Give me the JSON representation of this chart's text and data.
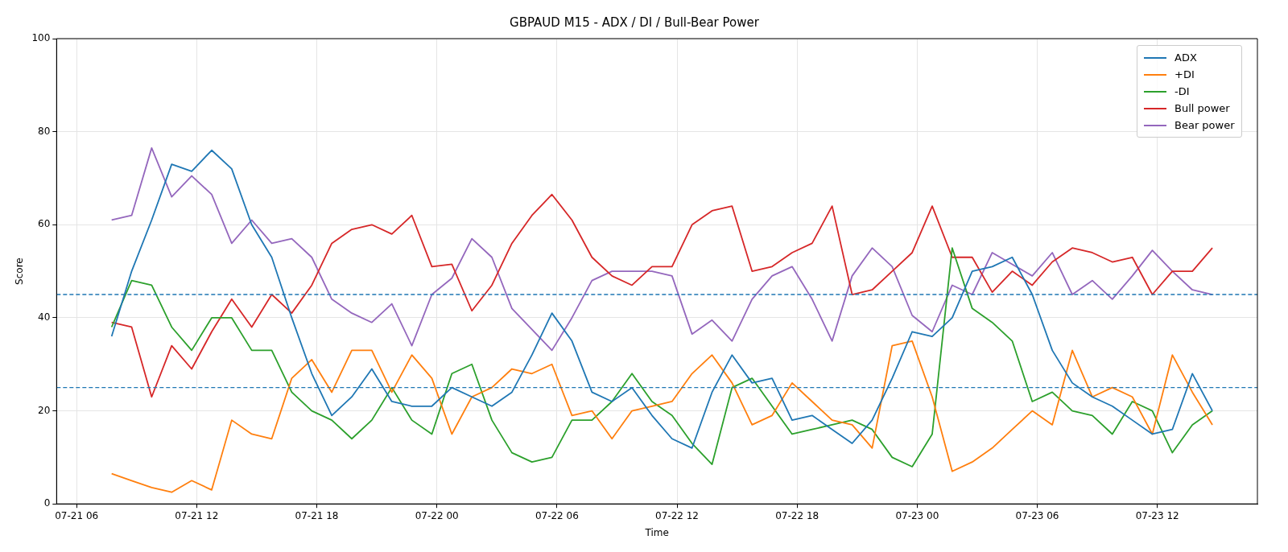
{
  "chart_data": {
    "type": "line",
    "title": "GBPAUD M15 - ADX / DI / Bull-Bear Power",
    "xlabel": "Time",
    "ylabel": "Score",
    "x": [
      "--07-21T07:45",
      "--07-21T08:45",
      "--07-21T09:45",
      "--07-21T10:45",
      "--07-21T11:45",
      "--07-21T12:45",
      "--07-21T13:45",
      "--07-21T14:45",
      "--07-21T15:45",
      "--07-21T16:45",
      "--07-21T17:45",
      "--07-21T18:45",
      "--07-21T19:45",
      "--07-21T20:45",
      "--07-21T21:45",
      "--07-21T22:45",
      "--07-21T23:45",
      "--07-22T00:45",
      "--07-22T01:45",
      "--07-22T02:45",
      "--07-22T03:45",
      "--07-22T04:45",
      "--07-22T05:45",
      "--07-22T06:45",
      "--07-22T07:45",
      "--07-22T08:45",
      "--07-22T09:45",
      "--07-22T10:45",
      "--07-22T11:45",
      "--07-22T12:45",
      "--07-22T13:45",
      "--07-22T14:45",
      "--07-22T15:45",
      "--07-22T16:45",
      "--07-22T17:45",
      "--07-22T18:45",
      "--07-22T19:45",
      "--07-22T20:45",
      "--07-22T21:45",
      "--07-22T22:45",
      "--07-22T23:45",
      "--07-23T00:45",
      "--07-23T01:45",
      "--07-23T02:45",
      "--07-23T03:45",
      "--07-23T04:45",
      "--07-23T05:45",
      "--07-23T06:45",
      "--07-23T07:45",
      "--07-23T08:45",
      "--07-23T09:45",
      "--07-23T10:45",
      "--07-23T11:45",
      "--07-23T12:45",
      "--07-23T13:45",
      "--07-23T14:45"
    ],
    "series": [
      {
        "name": "ADX",
        "color": "#1f77b4",
        "values": [
          36,
          50,
          61,
          73,
          71.5,
          76,
          72,
          60,
          53,
          40,
          28,
          19,
          23,
          29,
          22,
          21,
          21,
          25,
          23,
          21,
          24,
          32,
          41,
          35,
          24,
          22,
          25,
          19,
          14,
          12,
          24,
          32,
          26,
          27,
          18,
          19,
          16,
          13,
          18,
          27,
          37,
          36,
          40,
          50,
          51,
          53,
          45,
          33,
          26,
          23,
          21,
          18,
          15,
          16,
          28,
          20
        ]
      },
      {
        "name": "+DI",
        "color": "#ff7f0e",
        "values": [
          6.5,
          5,
          3.5,
          2.5,
          5,
          3,
          18,
          15,
          14,
          27,
          31,
          24,
          33,
          33,
          24,
          32,
          27,
          15,
          23,
          25,
          29,
          28,
          30,
          19,
          20,
          14,
          20,
          21,
          22,
          28,
          32,
          26,
          17,
          19,
          26,
          22,
          18,
          17,
          12,
          34,
          35,
          23,
          7,
          9,
          12,
          16,
          20,
          17,
          33,
          23,
          25,
          23,
          15,
          32,
          24,
          17
        ]
      },
      {
        "name": "-DI",
        "color": "#2ca02c",
        "values": [
          38,
          48,
          47,
          38,
          33,
          40,
          40,
          33,
          33,
          24,
          20,
          18,
          14,
          18,
          25,
          18,
          15,
          28,
          30,
          18,
          11,
          9,
          10,
          18,
          18,
          22,
          28,
          22,
          19,
          13,
          8.5,
          25,
          27,
          21,
          15,
          16,
          17,
          18,
          16,
          10,
          8,
          15,
          55,
          42,
          39,
          35,
          22,
          24,
          20,
          19,
          15,
          22,
          20,
          11,
          17,
          20
        ]
      },
      {
        "name": "Bull power",
        "color": "#d62728",
        "values": [
          39,
          38,
          23,
          34,
          29,
          37,
          44,
          38,
          45,
          41,
          47,
          56,
          59,
          60,
          58,
          62,
          51,
          51.5,
          41.5,
          47,
          56,
          62,
          66.5,
          61,
          53,
          49,
          47,
          51,
          51,
          60,
          63,
          64,
          50,
          51,
          54,
          56,
          64,
          45,
          46,
          50,
          54,
          64,
          53,
          53,
          45.5,
          50,
          47,
          52,
          55,
          54,
          52,
          53,
          45,
          50,
          50,
          55
        ]
      },
      {
        "name": "Bear power",
        "color": "#9467bd",
        "values": [
          61,
          62,
          76.5,
          66,
          70.5,
          66.5,
          56,
          61,
          56,
          57,
          53,
          44,
          41,
          39,
          43,
          34,
          45,
          48.5,
          57,
          53,
          42,
          37.5,
          33,
          40,
          48,
          50,
          50,
          50,
          49,
          36.5,
          39.5,
          35,
          44,
          49,
          51,
          44,
          35,
          49,
          55,
          51,
          40.5,
          37,
          47,
          45,
          54,
          51.5,
          49,
          54,
          45,
          48,
          44,
          49,
          54.5,
          50,
          46,
          45
        ]
      }
    ],
    "xlim": [
      "--07-21T05:00",
      "--07-23T17:00"
    ],
    "xticks": [
      {
        "value": "--07-21T06:00",
        "label": "07-21 06"
      },
      {
        "value": "--07-21T12:00",
        "label": "07-21 12"
      },
      {
        "value": "--07-21T18:00",
        "label": "07-21 18"
      },
      {
        "value": "--07-22T00:00",
        "label": "07-22 00"
      },
      {
        "value": "--07-22T06:00",
        "label": "07-22 06"
      },
      {
        "value": "--07-22T12:00",
        "label": "07-22 12"
      },
      {
        "value": "--07-22T18:00",
        "label": "07-22 18"
      },
      {
        "value": "--07-23T00:00",
        "label": "07-23 00"
      },
      {
        "value": "--07-23T06:00",
        "label": "07-23 06"
      },
      {
        "value": "--07-23T12:00",
        "label": "07-23 12"
      }
    ],
    "ylim": [
      0,
      100
    ],
    "yticks": [
      0,
      20,
      40,
      60,
      80,
      100
    ],
    "ref_lines": [
      {
        "axis": "y",
        "value": 45,
        "color": "#1f77b4",
        "line_style": "dashed"
      },
      {
        "axis": "y",
        "value": 25,
        "color": "#1f77b4",
        "line_style": "dashed"
      }
    ],
    "grid": true,
    "legend": "top right",
    "marker": "none",
    "line_style": "solid"
  }
}
